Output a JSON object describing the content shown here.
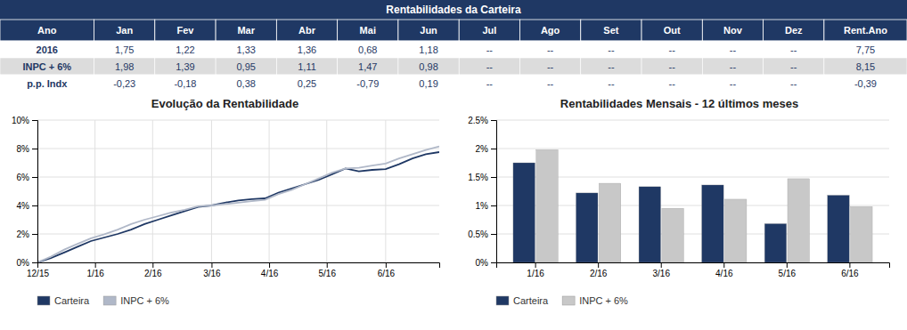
{
  "chart_data": [
    {
      "type": "table",
      "title": "Rentabilidades da Carteira",
      "columns": [
        "Ano",
        "Jan",
        "Fev",
        "Mar",
        "Abr",
        "Mai",
        "Jun",
        "Jul",
        "Ago",
        "Set",
        "Out",
        "Nov",
        "Dez",
        "Rent.Ano"
      ],
      "rows": [
        [
          "2016",
          "1,75",
          "1,22",
          "1,33",
          "1,36",
          "0,68",
          "1,18",
          "--",
          "--",
          "--",
          "--",
          "--",
          "--",
          "7,75"
        ],
        [
          "INPC + 6%",
          "1,98",
          "1,39",
          "0,95",
          "1,11",
          "1,47",
          "0,98",
          "--",
          "--",
          "--",
          "--",
          "--",
          "--",
          "8,15"
        ],
        [
          "p.p. Indx",
          "-0,23",
          "-0,18",
          "0,38",
          "0,25",
          "-0,79",
          "0,19",
          "--",
          "--",
          "--",
          "--",
          "--",
          "--",
          "-0,39"
        ]
      ],
      "color": "#1F3864",
      "colors": [
        "#FFFFFF",
        "#DCDCDC",
        "#FFFFFF"
      ]
    },
    {
      "type": "line",
      "title": "Evolução da Rentabilidade",
      "x": [
        0,
        1,
        2,
        3,
        4,
        5,
        6,
        7,
        8,
        9,
        10,
        11,
        12,
        13,
        14,
        15,
        16,
        17,
        18,
        19,
        20,
        21,
        22,
        23,
        24,
        25,
        26,
        27,
        28,
        29,
        30
      ],
      "xlim": [
        0,
        30
      ],
      "xticks": [
        {
          "value": 0,
          "label": "12/15"
        },
        {
          "value": 4.3,
          "label": "1/16"
        },
        {
          "value": 8.6,
          "label": "2/16"
        },
        {
          "value": 13.0,
          "label": "3/16"
        },
        {
          "value": 17.3,
          "label": "4/16"
        },
        {
          "value": 21.6,
          "label": "5/16"
        },
        {
          "value": 26.0,
          "label": "6/16"
        }
      ],
      "ylim": [
        0,
        10
      ],
      "yticks": [
        {
          "value": 0,
          "label": "0%"
        },
        {
          "value": 2,
          "label": "2%"
        },
        {
          "value": 4,
          "label": "4%"
        },
        {
          "value": 6,
          "label": "6%"
        },
        {
          "value": 8,
          "label": "8%"
        },
        {
          "value": 10,
          "label": "10%"
        }
      ],
      "grid": true,
      "legend": "bottom",
      "series": [
        {
          "name": "Carteira",
          "color": "#1F3864",
          "values": [
            0.0,
            0.3,
            0.7,
            1.1,
            1.5,
            1.75,
            2.0,
            2.3,
            2.7,
            3.0,
            3.3,
            3.6,
            3.9,
            4.0,
            4.2,
            4.35,
            4.45,
            4.5,
            4.9,
            5.2,
            5.5,
            5.8,
            6.2,
            6.6,
            6.4,
            6.5,
            6.55,
            6.9,
            7.3,
            7.6,
            7.75
          ]
        },
        {
          "name": "INPC + 6%",
          "color": "#B0B8C8",
          "values": [
            0.0,
            0.4,
            0.9,
            1.3,
            1.7,
            1.98,
            2.3,
            2.7,
            3.0,
            3.25,
            3.5,
            3.7,
            3.95,
            4.0,
            4.1,
            4.2,
            4.3,
            4.4,
            4.8,
            5.1,
            5.5,
            5.9,
            6.3,
            6.6,
            6.65,
            6.8,
            6.95,
            7.3,
            7.6,
            7.9,
            8.15
          ]
        }
      ]
    },
    {
      "type": "bar",
      "title": "Rentabilidades Mensais - 12 últimos meses",
      "categories": [
        "1/16",
        "2/16",
        "3/16",
        "4/16",
        "5/16",
        "6/16"
      ],
      "ylim": [
        0,
        2.5
      ],
      "yticks": [
        {
          "value": 0,
          "label": "0%"
        },
        {
          "value": 0.5,
          "label": "0.5%"
        },
        {
          "value": 1.0,
          "label": "1%"
        },
        {
          "value": 1.5,
          "label": "1.5%"
        },
        {
          "value": 2.0,
          "label": "2%"
        },
        {
          "value": 2.5,
          "label": "2.5%"
        }
      ],
      "grid": "y",
      "legend": "bottom",
      "series": [
        {
          "name": "Carteira",
          "color": "#1F3864",
          "values": [
            1.75,
            1.22,
            1.33,
            1.36,
            0.68,
            1.18
          ]
        },
        {
          "name": "INPC + 6%",
          "color": "#C8C8C8",
          "values": [
            1.98,
            1.39,
            0.95,
            1.11,
            1.47,
            0.98
          ]
        }
      ]
    }
  ]
}
